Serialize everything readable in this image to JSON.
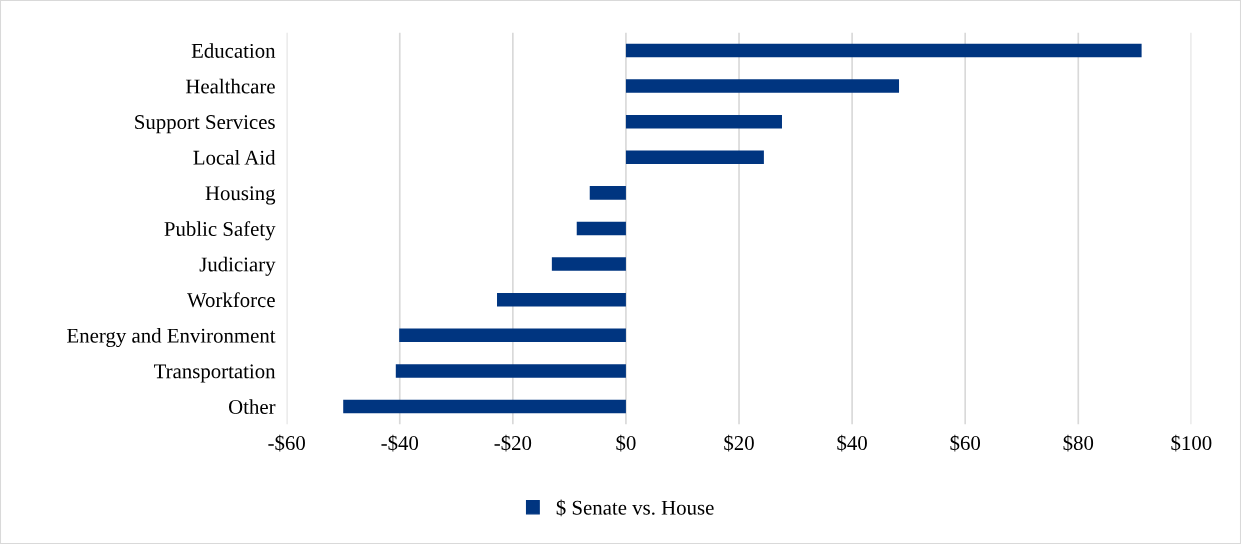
{
  "chart_data": {
    "type": "bar",
    "orientation": "horizontal",
    "categories": [
      "Education",
      "Healthcare",
      "Support Services",
      "Local Aid",
      "Housing",
      "Public Safety",
      "Judiciary",
      "Workforce",
      "Energy and Environment",
      "Transportation",
      "Other"
    ],
    "series": [
      {
        "name": "$ Senate vs. House",
        "color": "#003580",
        "values": [
          91.2,
          48.3,
          27.6,
          24.4,
          -6.4,
          -8.7,
          -13.1,
          -22.8,
          -40.1,
          -40.7,
          -50.0
        ]
      }
    ],
    "xlim": [
      -60,
      100
    ],
    "xticks": [
      {
        "value": -60,
        "label": "-$60"
      },
      {
        "value": -40,
        "label": "-$40"
      },
      {
        "value": -20,
        "label": "-$20"
      },
      {
        "value": 0,
        "label": "$0"
      },
      {
        "value": 20,
        "label": "$20"
      },
      {
        "value": 40,
        "label": "$40"
      },
      {
        "value": 60,
        "label": "$60"
      },
      {
        "value": 80,
        "label": "$80"
      },
      {
        "value": 100,
        "label": "$100"
      }
    ],
    "grid": "x",
    "legend": "bottom"
  }
}
